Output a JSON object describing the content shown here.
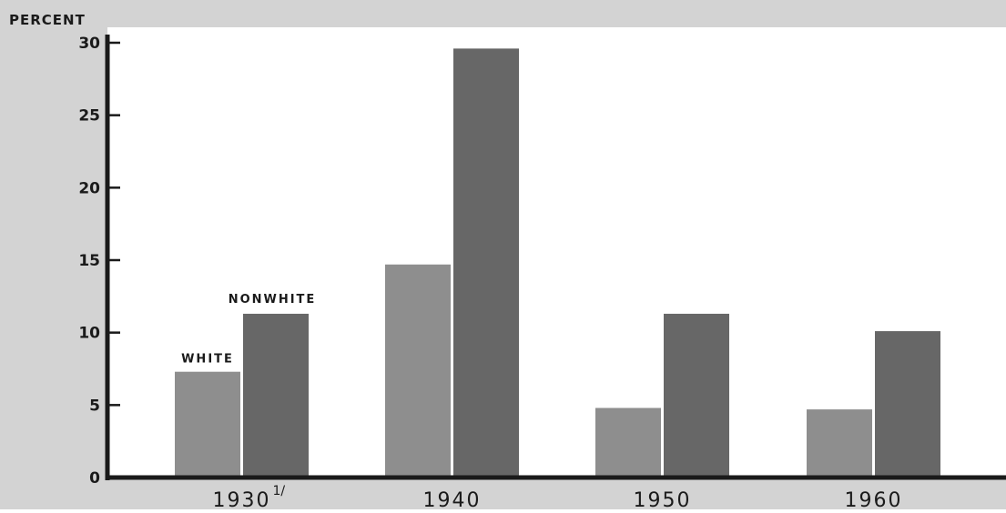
{
  "chart_data": {
    "type": "bar",
    "unit_label": "PERCENT",
    "categories": [
      "1930",
      "1940",
      "1950",
      "1960"
    ],
    "category_footnotes": [
      "1/",
      "",
      "",
      ""
    ],
    "series": [
      {
        "name": "WHITE",
        "values": [
          7.3,
          14.7,
          4.8,
          4.7
        ]
      },
      {
        "name": "NONWHITE",
        "values": [
          11.3,
          29.6,
          11.3,
          10.1
        ]
      }
    ],
    "ylim": [
      0,
      30
    ],
    "yticks": [
      0,
      5,
      10,
      15,
      20,
      25,
      30
    ],
    "grid": false,
    "legend": "labels above first bar group",
    "colors": {
      "background": "#d3d3d3",
      "plot_background": "#ffffff",
      "white_series": "#8e8e8e",
      "nonwhite_series": "#676767",
      "axis": "#1a1a1a"
    }
  }
}
